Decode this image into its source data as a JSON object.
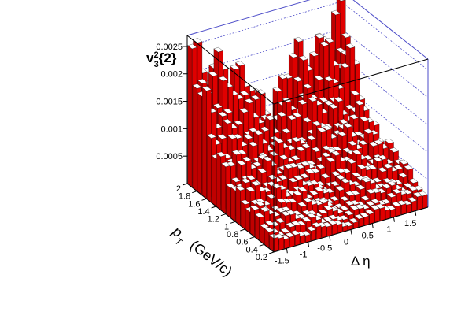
{
  "chart_data": {
    "type": "lego3d",
    "title": "",
    "xlabel": "Δ η",
    "ylabel": "p_T (GeV/c)",
    "zlabel": "v_3^2{2}",
    "x_range": [
      -1.8,
      1.8
    ],
    "y_range": [
      0.2,
      2.0
    ],
    "zlim": [
      0,
      0.0027
    ],
    "x_ticks": [
      "-1.5",
      "-1",
      "-0.5",
      "0",
      "0.5",
      "1",
      "1.5"
    ],
    "y_ticks": [
      "0.2",
      "0.4",
      "0.6",
      "0.8",
      "1",
      "1.2",
      "1.4",
      "1.6",
      "1.8",
      "2"
    ],
    "z_ticks": [
      "0.0005",
      "0.001",
      "0.0015",
      "0.002",
      "0.0025"
    ],
    "n_x_bins": 29,
    "n_y_bins": 18,
    "notes": "Lego histogram: v3^2{2} rises with pT, dips near Δη = 0",
    "colors": {
      "bar_side": "#e00000",
      "bar_top": "#ffffff",
      "frame": "#4b4bc8",
      "grid": "#4b4bc8"
    }
  }
}
